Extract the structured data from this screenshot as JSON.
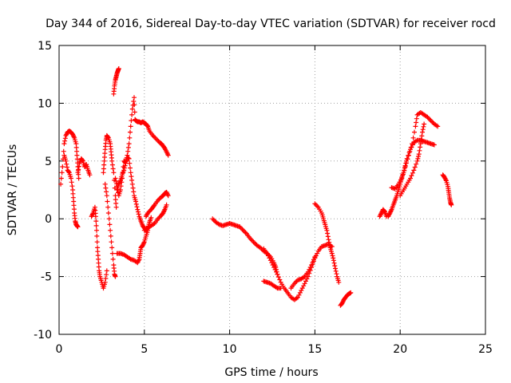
{
  "chart_data": {
    "type": "scatter",
    "title": "Day 344 of 2016, Sidereal Day-to-day VTEC variation (SDTVAR) for receiver rocd",
    "xlabel": "GPS time / hours",
    "ylabel": "SDTVAR / TECUs",
    "xlim": [
      0,
      25
    ],
    "ylim": [
      -10,
      15
    ],
    "xticks": [
      "0",
      "5",
      "10",
      "15",
      "20",
      "25"
    ],
    "yticks": [
      "-10",
      "-5",
      "0",
      "5",
      "10",
      "15"
    ],
    "grid": true,
    "legend": "none",
    "marker": "plus",
    "color": "#ff0000",
    "segments": [
      {
        "points": [
          [
            0.1,
            3.0
          ],
          [
            0.2,
            4.5
          ],
          [
            0.3,
            6.5
          ],
          [
            0.4,
            7.2
          ],
          [
            0.5,
            7.5
          ],
          [
            0.6,
            7.6
          ],
          [
            0.7,
            7.5
          ],
          [
            0.8,
            7.3
          ],
          [
            0.9,
            7.0
          ],
          [
            1.0,
            6.5
          ],
          [
            1.05,
            5.5
          ],
          [
            1.1,
            4.5
          ],
          [
            1.15,
            3.5
          ]
        ]
      },
      {
        "points": [
          [
            0.3,
            5.5
          ],
          [
            0.4,
            5.0
          ],
          [
            0.5,
            4.2
          ],
          [
            0.6,
            4.0
          ],
          [
            0.7,
            3.5
          ],
          [
            0.8,
            2.5
          ],
          [
            0.85,
            1.5
          ],
          [
            0.9,
            0.5
          ],
          [
            0.95,
            -0.2
          ],
          [
            1.0,
            -0.5
          ],
          [
            1.05,
            -0.6
          ],
          [
            1.1,
            -0.7
          ]
        ]
      },
      {
        "points": [
          [
            1.1,
            4.0
          ],
          [
            1.2,
            4.8
          ],
          [
            1.3,
            5.2
          ],
          [
            1.4,
            5.0
          ],
          [
            1.5,
            4.5
          ],
          [
            1.6,
            4.7
          ],
          [
            1.7,
            4.2
          ],
          [
            1.8,
            3.8
          ]
        ]
      },
      {
        "points": [
          [
            1.9,
            0.2
          ],
          [
            2.0,
            0.5
          ],
          [
            2.1,
            1.0
          ],
          [
            2.15,
            0.2
          ],
          [
            2.2,
            -1.0
          ],
          [
            2.25,
            -2.5
          ],
          [
            2.3,
            -3.5
          ],
          [
            2.35,
            -4.5
          ],
          [
            2.4,
            -5.0
          ],
          [
            2.5,
            -5.5
          ],
          [
            2.6,
            -6.0
          ],
          [
            2.7,
            -5.5
          ],
          [
            2.8,
            -4.5
          ]
        ]
      },
      {
        "points": [
          [
            2.6,
            4.0
          ],
          [
            2.65,
            5.0
          ],
          [
            2.7,
            6.0
          ],
          [
            2.75,
            6.8
          ],
          [
            2.8,
            7.2
          ],
          [
            2.9,
            7.0
          ],
          [
            3.0,
            6.5
          ],
          [
            3.05,
            5.8
          ],
          [
            3.1,
            5.0
          ],
          [
            3.2,
            4.0
          ],
          [
            3.3,
            2.0
          ],
          [
            3.35,
            1.0
          ]
        ]
      },
      {
        "points": [
          [
            2.7,
            3.0
          ],
          [
            2.8,
            2.0
          ],
          [
            2.9,
            0.5
          ],
          [
            3.0,
            -1.0
          ],
          [
            3.1,
            -2.5
          ],
          [
            3.2,
            -4.0
          ],
          [
            3.25,
            -4.8
          ],
          [
            3.3,
            -5.0
          ]
        ]
      },
      {
        "points": [
          [
            3.2,
            10.8
          ],
          [
            3.25,
            11.5
          ],
          [
            3.3,
            12.0
          ],
          [
            3.35,
            12.3
          ],
          [
            3.4,
            12.6
          ],
          [
            3.45,
            12.8
          ],
          [
            3.5,
            13.0
          ]
        ]
      },
      {
        "points": [
          [
            3.4,
            2.5
          ],
          [
            3.5,
            3.0
          ],
          [
            3.6,
            3.3
          ],
          [
            3.7,
            3.8
          ],
          [
            3.8,
            4.2
          ],
          [
            3.9,
            4.8
          ],
          [
            4.0,
            5.5
          ],
          [
            4.1,
            6.5
          ],
          [
            4.2,
            8.0
          ],
          [
            4.3,
            9.5
          ],
          [
            4.4,
            10.5
          ],
          [
            4.45,
            8.6
          ],
          [
            4.5,
            8.5
          ],
          [
            4.6,
            8.4
          ],
          [
            4.7,
            8.4
          ],
          [
            4.8,
            8.3
          ],
          [
            4.9,
            8.4
          ],
          [
            5.0,
            8.3
          ],
          [
            5.1,
            8.2
          ],
          [
            5.2,
            8.0
          ],
          [
            5.3,
            7.6
          ],
          [
            5.5,
            7.2
          ],
          [
            5.7,
            6.9
          ],
          [
            5.9,
            6.6
          ],
          [
            6.0,
            6.5
          ],
          [
            6.1,
            6.3
          ],
          [
            6.2,
            6.1
          ],
          [
            6.3,
            5.8
          ],
          [
            6.4,
            5.5
          ]
        ]
      },
      {
        "points": [
          [
            3.3,
            3.5
          ],
          [
            3.4,
            2.8
          ],
          [
            3.5,
            2.0
          ],
          [
            3.6,
            2.5
          ],
          [
            3.7,
            3.5
          ],
          [
            3.8,
            5.0
          ],
          [
            3.9,
            4.8
          ],
          [
            4.0,
            5.3
          ],
          [
            4.1,
            5.2
          ],
          [
            4.2,
            4.0
          ],
          [
            4.3,
            3.0
          ],
          [
            4.4,
            2.0
          ],
          [
            4.5,
            1.5
          ],
          [
            4.6,
            0.8
          ],
          [
            4.7,
            0.2
          ],
          [
            4.8,
            -0.2
          ],
          [
            4.9,
            -0.6
          ],
          [
            5.0,
            -0.8
          ],
          [
            5.1,
            -1.0
          ],
          [
            5.2,
            -0.8
          ],
          [
            5.3,
            -0.3
          ],
          [
            5.4,
            0.1
          ]
        ]
      },
      {
        "points": [
          [
            3.4,
            -3.0
          ],
          [
            3.6,
            -3.0
          ],
          [
            3.8,
            -3.1
          ],
          [
            4.0,
            -3.3
          ],
          [
            4.2,
            -3.5
          ],
          [
            4.4,
            -3.6
          ],
          [
            4.6,
            -3.8
          ],
          [
            4.7,
            -3.5
          ],
          [
            4.75,
            -3.0
          ],
          [
            4.8,
            -2.5
          ],
          [
            4.9,
            -2.3
          ],
          [
            5.0,
            -2.0
          ],
          [
            5.1,
            -1.5
          ],
          [
            5.2,
            -1.0
          ]
        ]
      },
      {
        "points": [
          [
            5.1,
            0.2
          ],
          [
            5.2,
            0.5
          ],
          [
            5.4,
            0.8
          ],
          [
            5.5,
            1.0
          ],
          [
            5.6,
            1.2
          ],
          [
            5.8,
            1.6
          ],
          [
            6.0,
            1.9
          ],
          [
            6.1,
            2.0
          ],
          [
            6.2,
            2.2
          ],
          [
            6.3,
            2.3
          ],
          [
            6.4,
            2.0
          ]
        ]
      },
      {
        "points": [
          [
            5.0,
            -1.0
          ],
          [
            5.2,
            -0.8
          ],
          [
            5.4,
            -0.6
          ],
          [
            5.6,
            -0.4
          ],
          [
            5.8,
            0.0
          ],
          [
            6.0,
            0.3
          ],
          [
            6.1,
            0.5
          ],
          [
            6.2,
            0.8
          ],
          [
            6.3,
            1.2
          ]
        ]
      },
      {
        "points": [
          [
            9.0,
            0.0
          ],
          [
            9.2,
            -0.3
          ],
          [
            9.4,
            -0.5
          ],
          [
            9.6,
            -0.6
          ],
          [
            9.8,
            -0.5
          ],
          [
            10.0,
            -0.4
          ],
          [
            10.2,
            -0.5
          ],
          [
            10.4,
            -0.6
          ],
          [
            10.6,
            -0.7
          ],
          [
            10.8,
            -1.0
          ],
          [
            11.0,
            -1.3
          ],
          [
            11.2,
            -1.7
          ],
          [
            11.4,
            -2.0
          ],
          [
            11.6,
            -2.3
          ],
          [
            11.8,
            -2.5
          ],
          [
            12.0,
            -2.8
          ],
          [
            12.2,
            -3.0
          ],
          [
            12.4,
            -3.3
          ],
          [
            12.6,
            -3.8
          ],
          [
            12.7,
            -4.2
          ],
          [
            12.8,
            -4.8
          ]
        ]
      },
      {
        "points": [
          [
            12.0,
            -5.4
          ],
          [
            12.2,
            -5.5
          ],
          [
            12.4,
            -5.6
          ],
          [
            12.6,
            -5.8
          ],
          [
            12.8,
            -6.0
          ],
          [
            13.0,
            -6.0
          ]
        ]
      },
      {
        "points": [
          [
            12.0,
            -2.6
          ],
          [
            12.2,
            -3.0
          ],
          [
            12.4,
            -3.6
          ],
          [
            12.6,
            -4.2
          ],
          [
            12.8,
            -4.8
          ],
          [
            13.0,
            -5.5
          ],
          [
            13.2,
            -6.0
          ],
          [
            13.4,
            -6.4
          ],
          [
            13.6,
            -6.8
          ],
          [
            13.8,
            -7.0
          ],
          [
            14.0,
            -6.8
          ],
          [
            14.2,
            -6.2
          ],
          [
            14.4,
            -5.6
          ],
          [
            14.6,
            -5.0
          ],
          [
            14.8,
            -4.2
          ],
          [
            15.0,
            -3.4
          ],
          [
            15.2,
            -2.8
          ],
          [
            15.4,
            -2.4
          ],
          [
            15.6,
            -2.3
          ],
          [
            15.8,
            -2.2
          ],
          [
            16.0,
            -2.4
          ]
        ]
      },
      {
        "points": [
          [
            13.6,
            -6.0
          ],
          [
            13.8,
            -5.6
          ],
          [
            14.0,
            -5.3
          ],
          [
            14.2,
            -5.2
          ],
          [
            14.4,
            -5.0
          ],
          [
            14.6,
            -4.6
          ],
          [
            14.8,
            -4.0
          ],
          [
            15.0,
            -3.3
          ]
        ]
      },
      {
        "points": [
          [
            15.0,
            1.3
          ],
          [
            15.2,
            1.0
          ],
          [
            15.4,
            0.5
          ],
          [
            15.5,
            0.0
          ],
          [
            15.6,
            -0.5
          ],
          [
            15.7,
            -1.0
          ],
          [
            15.8,
            -1.8
          ],
          [
            15.9,
            -2.5
          ],
          [
            16.0,
            -3.0
          ],
          [
            16.1,
            -3.6
          ],
          [
            16.2,
            -4.3
          ],
          [
            16.3,
            -5.0
          ],
          [
            16.4,
            -5.5
          ]
        ]
      },
      {
        "points": [
          [
            16.5,
            -7.5
          ],
          [
            16.6,
            -7.3
          ],
          [
            16.7,
            -7.0
          ],
          [
            16.8,
            -6.8
          ],
          [
            16.9,
            -6.6
          ],
          [
            17.0,
            -6.5
          ],
          [
            17.1,
            -6.4
          ]
        ]
      },
      {
        "points": [
          [
            18.8,
            0.2
          ],
          [
            18.9,
            0.5
          ],
          [
            19.0,
            0.8
          ],
          [
            19.1,
            0.6
          ],
          [
            19.2,
            0.2
          ]
        ]
      },
      {
        "points": [
          [
            19.3,
            0.2
          ],
          [
            19.4,
            0.5
          ],
          [
            19.5,
            0.8
          ],
          [
            19.6,
            1.2
          ],
          [
            19.7,
            1.6
          ],
          [
            19.8,
            2.0
          ],
          [
            19.9,
            2.5
          ],
          [
            20.0,
            3.0
          ],
          [
            20.1,
            3.6
          ],
          [
            20.2,
            4.0
          ],
          [
            20.3,
            4.6
          ],
          [
            20.4,
            5.2
          ],
          [
            20.6,
            6.0
          ],
          [
            20.8,
            6.6
          ],
          [
            21.0,
            6.8
          ],
          [
            21.2,
            6.8
          ],
          [
            21.4,
            6.7
          ],
          [
            21.6,
            6.6
          ],
          [
            21.8,
            6.5
          ],
          [
            22.0,
            6.4
          ]
        ]
      },
      {
        "points": [
          [
            19.5,
            2.7
          ],
          [
            19.7,
            2.6
          ],
          [
            19.9,
            3.0
          ],
          [
            20.1,
            3.5
          ],
          [
            20.3,
            4.5
          ],
          [
            20.5,
            5.5
          ],
          [
            20.7,
            6.5
          ],
          [
            20.9,
            8.0
          ],
          [
            21.0,
            9.0
          ],
          [
            21.2,
            9.2
          ],
          [
            21.4,
            9.0
          ],
          [
            21.6,
            8.8
          ],
          [
            21.8,
            8.5
          ],
          [
            22.0,
            8.2
          ],
          [
            22.2,
            8.0
          ]
        ]
      },
      {
        "points": [
          [
            20.0,
            2.0
          ],
          [
            20.2,
            2.5
          ],
          [
            20.4,
            3.0
          ],
          [
            20.6,
            3.5
          ],
          [
            20.8,
            4.2
          ],
          [
            21.0,
            5.0
          ],
          [
            21.1,
            5.6
          ],
          [
            21.2,
            6.5
          ],
          [
            21.3,
            7.5
          ],
          [
            21.4,
            8.2
          ]
        ]
      },
      {
        "points": [
          [
            22.5,
            3.8
          ],
          [
            22.6,
            3.6
          ],
          [
            22.7,
            3.3
          ],
          [
            22.8,
            2.8
          ],
          [
            22.85,
            2.3
          ],
          [
            22.9,
            1.8
          ],
          [
            22.95,
            1.4
          ],
          [
            23.0,
            1.2
          ]
        ]
      }
    ]
  }
}
